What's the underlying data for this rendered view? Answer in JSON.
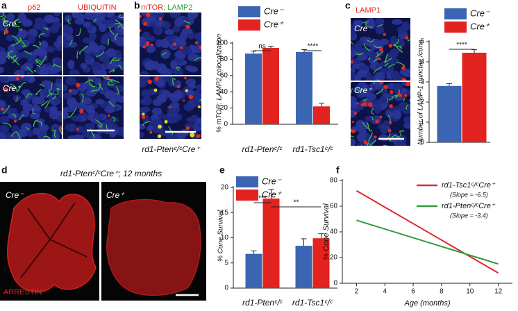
{
  "panel_a": {
    "letter": "a",
    "stain_1": "p62",
    "stain_2": "UBIQUITIN",
    "row_1": "Cre⁻",
    "row_2": "Cre⁺"
  },
  "panel_b": {
    "letter": "b",
    "stain_1": "mTOR",
    "separator": ";",
    "stain_2": "LAMP2",
    "caption": "rd1-Ptenᶜ/ᶜCre⁺"
  },
  "panel_c": {
    "letter": "c",
    "stain": "LAMP1",
    "row_1": "Cre⁻",
    "row_2": "Cre⁺"
  },
  "panel_d": {
    "letter": "d",
    "title": "rd1-Ptenᶜ/ᶜCre⁺; 12 months",
    "left": "Cre⁻",
    "right": "Cre⁺",
    "stain": "ARRESTIN"
  },
  "panel_e": {
    "letter": "e"
  },
  "panel_f": {
    "letter": "f"
  },
  "chart_data": [
    {
      "type": "bar",
      "ylabel": "% mTOR: LAMP2 colocalization",
      "categories": [
        "rd1-Ptenᶜ/ᶜ",
        "rd1-Tsc1ᶜ/ᶜ"
      ],
      "series": [
        {
          "name": "Cre⁻",
          "color": "#3b64b3",
          "values": [
            87,
            89
          ],
          "errors": [
            3,
            3
          ]
        },
        {
          "name": "Cre⁺",
          "color": "#e2231f",
          "values": [
            94,
            22
          ],
          "errors": [
            2,
            4
          ]
        }
      ],
      "ylim": [
        0,
        100
      ],
      "yticks": [
        0,
        20,
        40,
        60,
        80,
        100
      ],
      "annotations": [
        "ns",
        "****"
      ]
    },
    {
      "type": "bar",
      "ylabel": "Number of LAMP-1 punctae /cone",
      "categories": [
        null
      ],
      "series": [
        {
          "name": "Cre⁻",
          "color": "#3b64b3",
          "values": [
            2.8
          ],
          "errors": [
            0.12
          ]
        },
        {
          "name": "Cre⁺",
          "color": "#e2231f",
          "values": [
            4.45
          ],
          "errors": [
            0.15
          ]
        }
      ],
      "ylim": [
        0,
        5
      ],
      "yticks": [
        0,
        1,
        2,
        3,
        4,
        5
      ],
      "annotations": [
        "****"
      ]
    },
    {
      "type": "bar",
      "ylabel": "% Cone Survival",
      "categories": [
        "rd1-Ptenᶜ/ᶜ",
        "rd1-Tsc1ᶜ/ᶜ"
      ],
      "series": [
        {
          "name": "Cre⁻",
          "color": "#3b64b3",
          "values": [
            6.8,
            8.4
          ],
          "errors": [
            0.6,
            1.4
          ]
        },
        {
          "name": "Cre⁺",
          "color": "#e2231f",
          "values": [
            17.8,
            9.9
          ],
          "errors": [
            1.8,
            0.9
          ]
        }
      ],
      "ylim": [
        0,
        20
      ],
      "yticks": [
        0,
        5,
        10,
        15,
        20
      ],
      "annotations": [
        "***",
        "**"
      ]
    },
    {
      "type": "line",
      "xlabel": "Age (months)",
      "ylabel": "% Cone Survival",
      "x": [
        2,
        12
      ],
      "xlim": [
        1,
        13
      ],
      "xticks": [
        2,
        4,
        6,
        8,
        10,
        12
      ],
      "ylim": [
        0,
        80
      ],
      "yticks": [
        0,
        20,
        40,
        60,
        80
      ],
      "series": [
        {
          "name": "rd1-Tsc1ᶜ/ᶜCre⁺",
          "color": "#e0282a",
          "values": [
            72,
            8
          ],
          "note": "(Slope = -6.5)"
        },
        {
          "name": "rd1-Ptenᶜ/ᶜCre⁺",
          "color": "#2f9a3c",
          "values": [
            49,
            15
          ],
          "note": "(Slope = -3.4)"
        }
      ]
    }
  ]
}
